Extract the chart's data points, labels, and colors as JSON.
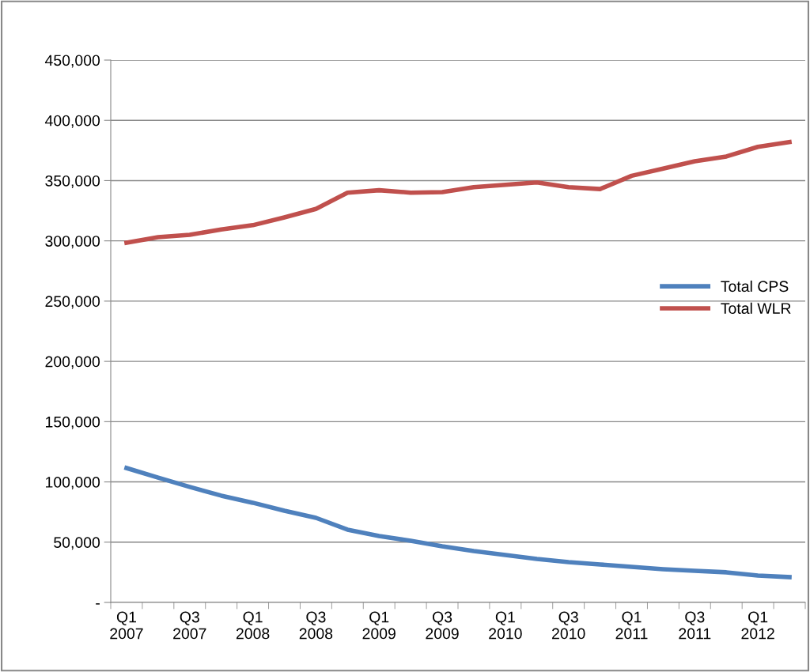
{
  "chart_data": {
    "type": "line",
    "categories": [
      "Q1\n2007",
      null,
      "Q3\n2007",
      null,
      "Q1\n2008",
      null,
      "Q3\n2008",
      null,
      "Q1\n2009",
      null,
      "Q3\n2009",
      null,
      "Q1\n2010",
      null,
      "Q3\n2010",
      null,
      "Q1\n2011",
      null,
      "Q3\n2011",
      null,
      "Q1\n2012",
      null
    ],
    "series": [
      {
        "name": "Total CPS",
        "color": "#4f81bd",
        "values": [
          111500,
          103600,
          95800,
          88600,
          82700,
          76100,
          70200,
          60400,
          55100,
          51200,
          46600,
          42600,
          39400,
          36100,
          33500,
          31500,
          29500,
          27600,
          26200,
          25000,
          22300,
          21000
        ]
      },
      {
        "name": "Total WLR",
        "color": "#c0504d",
        "values": [
          298500,
          303000,
          305000,
          309500,
          313000,
          319500,
          326500,
          340000,
          342000,
          340000,
          340500,
          344500,
          346500,
          348500,
          344500,
          343000,
          354000,
          360000,
          366000,
          370000,
          378000,
          382000
        ]
      }
    ],
    "ylim": [
      0,
      450000
    ],
    "yticks": [
      {
        "value": 0,
        "label": "-"
      },
      {
        "value": 50000,
        "label": "50,000"
      },
      {
        "value": 100000,
        "label": "100,000"
      },
      {
        "value": 150000,
        "label": "150,000"
      },
      {
        "value": 200000,
        "label": "200,000"
      },
      {
        "value": 250000,
        "label": "250,000"
      },
      {
        "value": 300000,
        "label": "300,000"
      },
      {
        "value": 350000,
        "label": "350,000"
      },
      {
        "value": 400000,
        "label": "400,000"
      },
      {
        "value": 450000,
        "label": "450,000"
      }
    ],
    "grid": "y",
    "legend": "right",
    "marker": "none",
    "line_style": "solid"
  }
}
